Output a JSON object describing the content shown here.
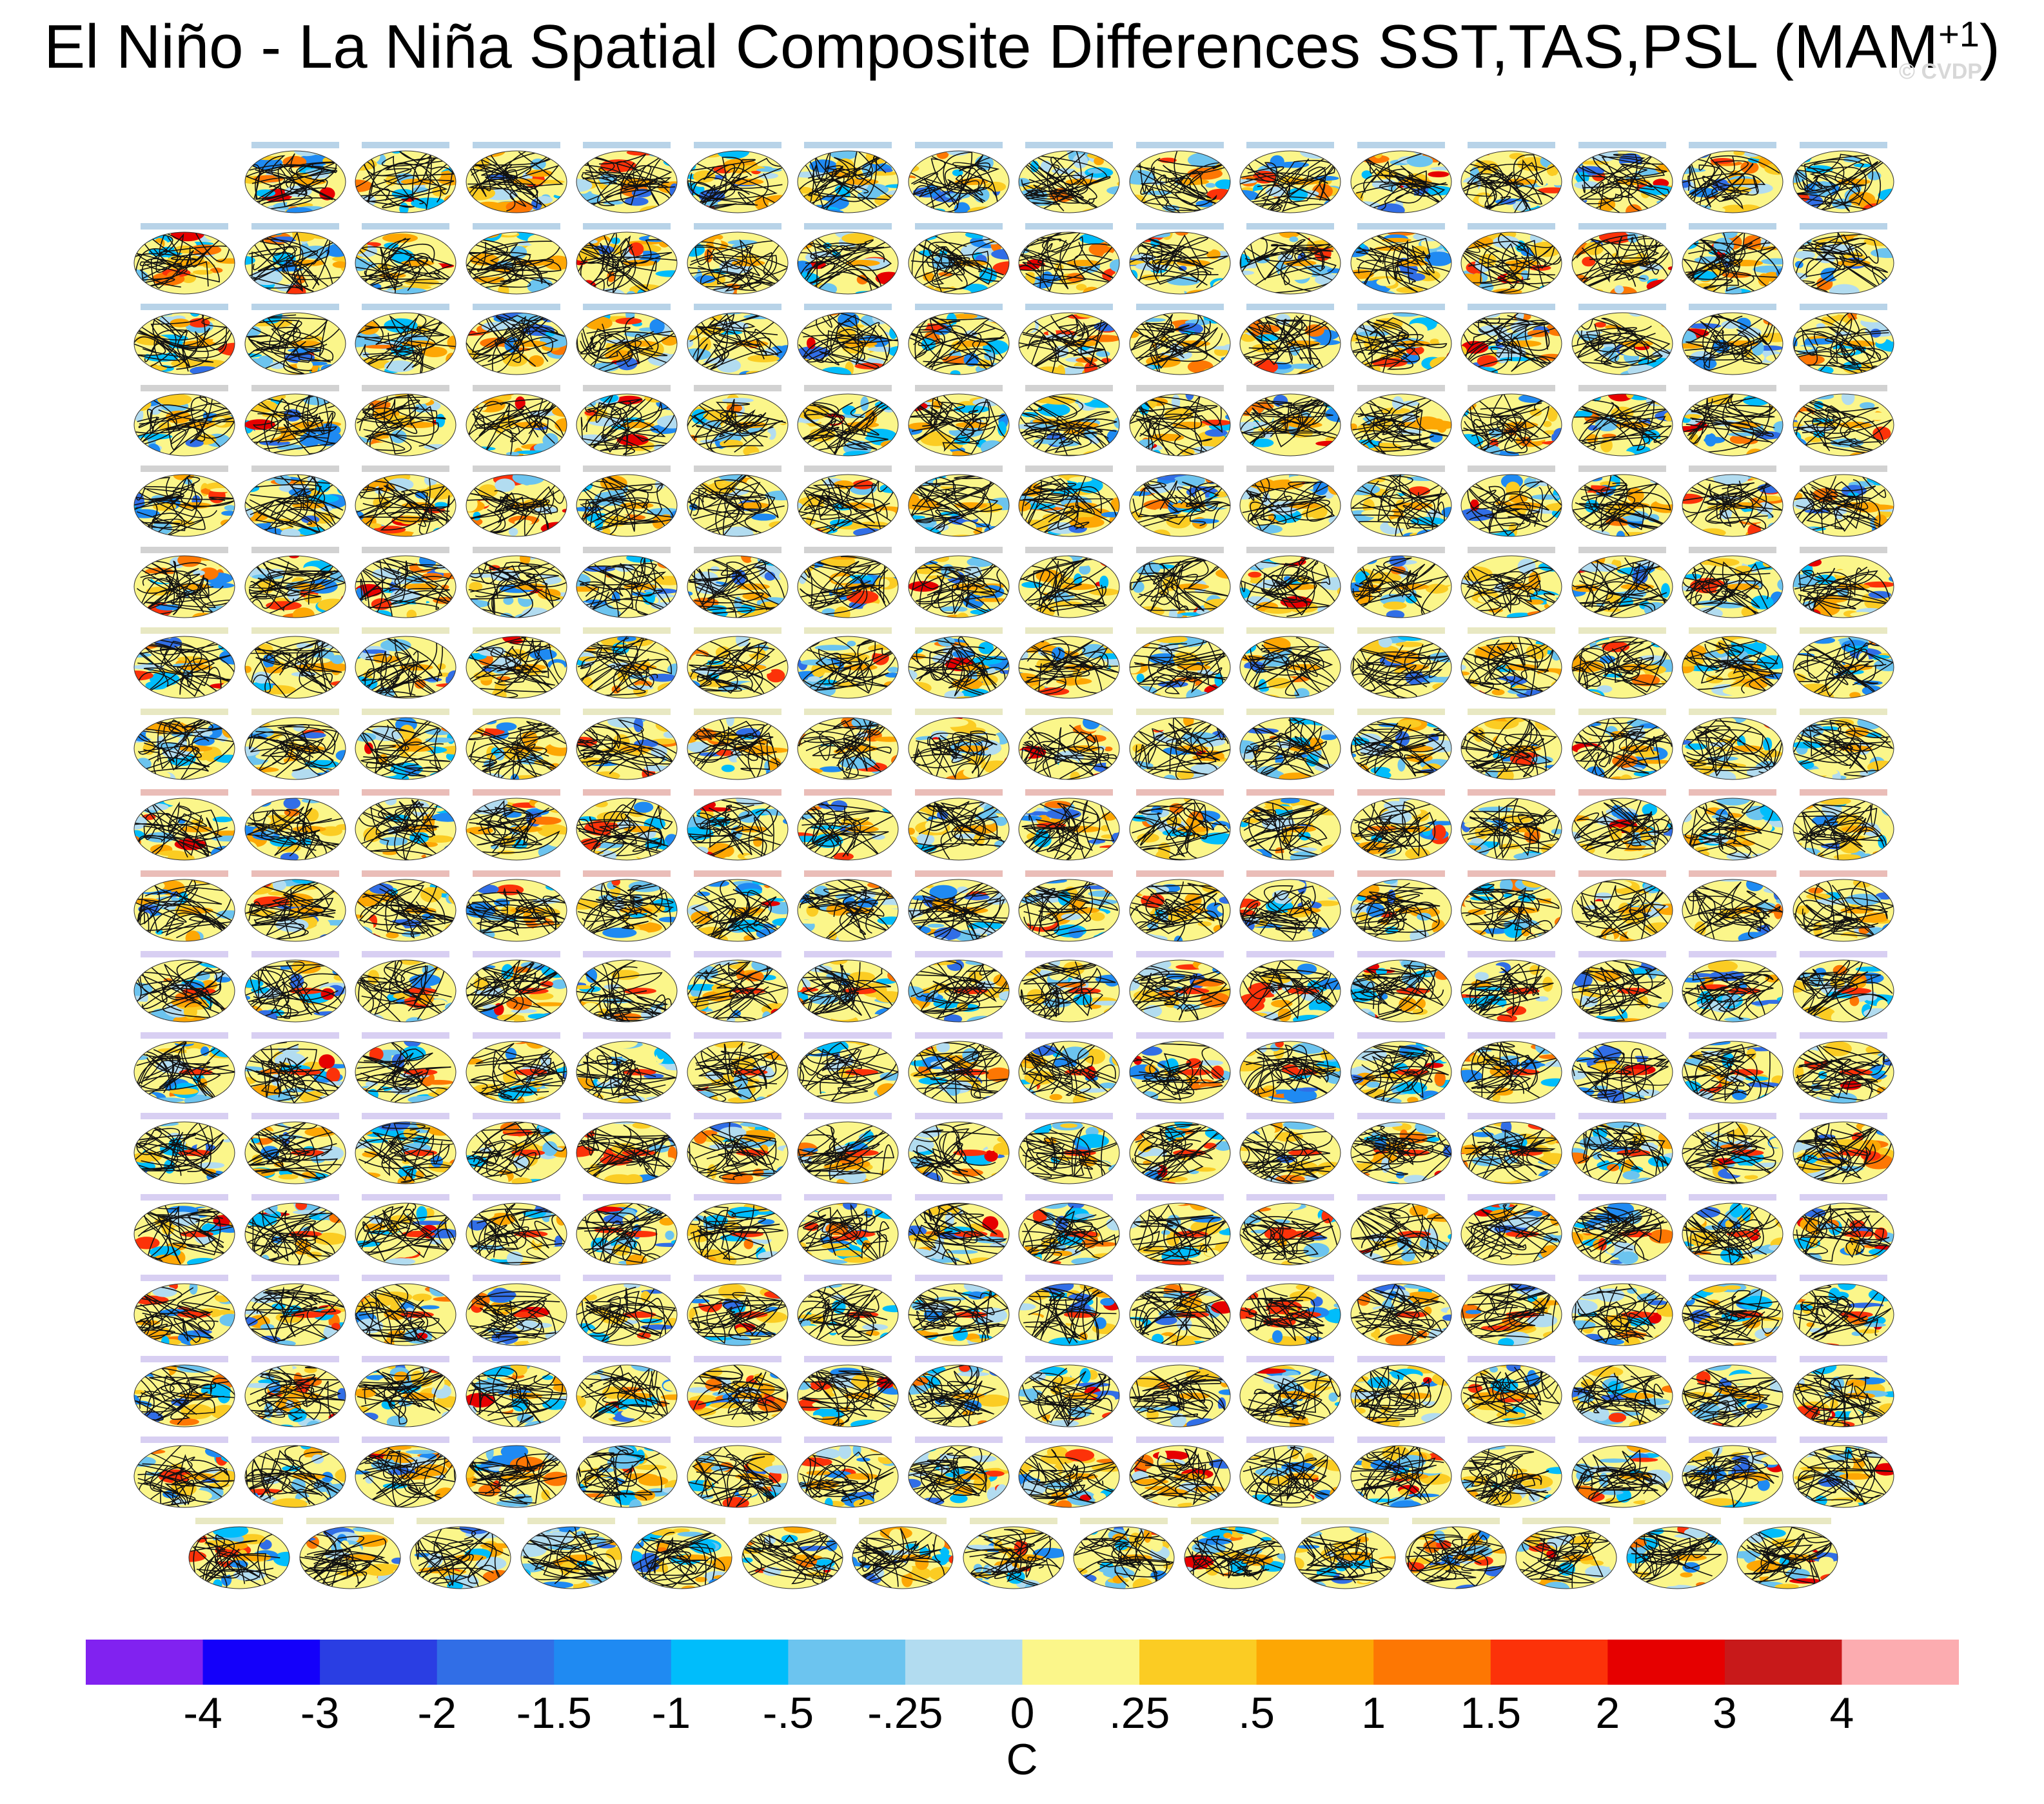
{
  "title": {
    "text": "El Niño - La Niña Spatial Composite Differences SST,TAS,PSL (MAM",
    "superscript": "+1",
    "close": ")"
  },
  "watermark": "© CVDP",
  "colorbar": {
    "colors": [
      "#8122f0",
      "#1400fa",
      "#2a3ee3",
      "#316ee6",
      "#1f8af2",
      "#00bdfb",
      "#6cc4ef",
      "#b2dcf0",
      "#fbf68a",
      "#fbcc23",
      "#fda704",
      "#fd7703",
      "#fc3209",
      "#e60000",
      "#c8191a",
      "#fcacb0"
    ],
    "labels": [
      "-4",
      "-3",
      "-2",
      "-1.5",
      "-1",
      "-.5",
      "-.25",
      "0",
      ".25",
      ".5",
      "1",
      "1.5",
      "2",
      "3",
      "4"
    ],
    "units": "C"
  }
}
